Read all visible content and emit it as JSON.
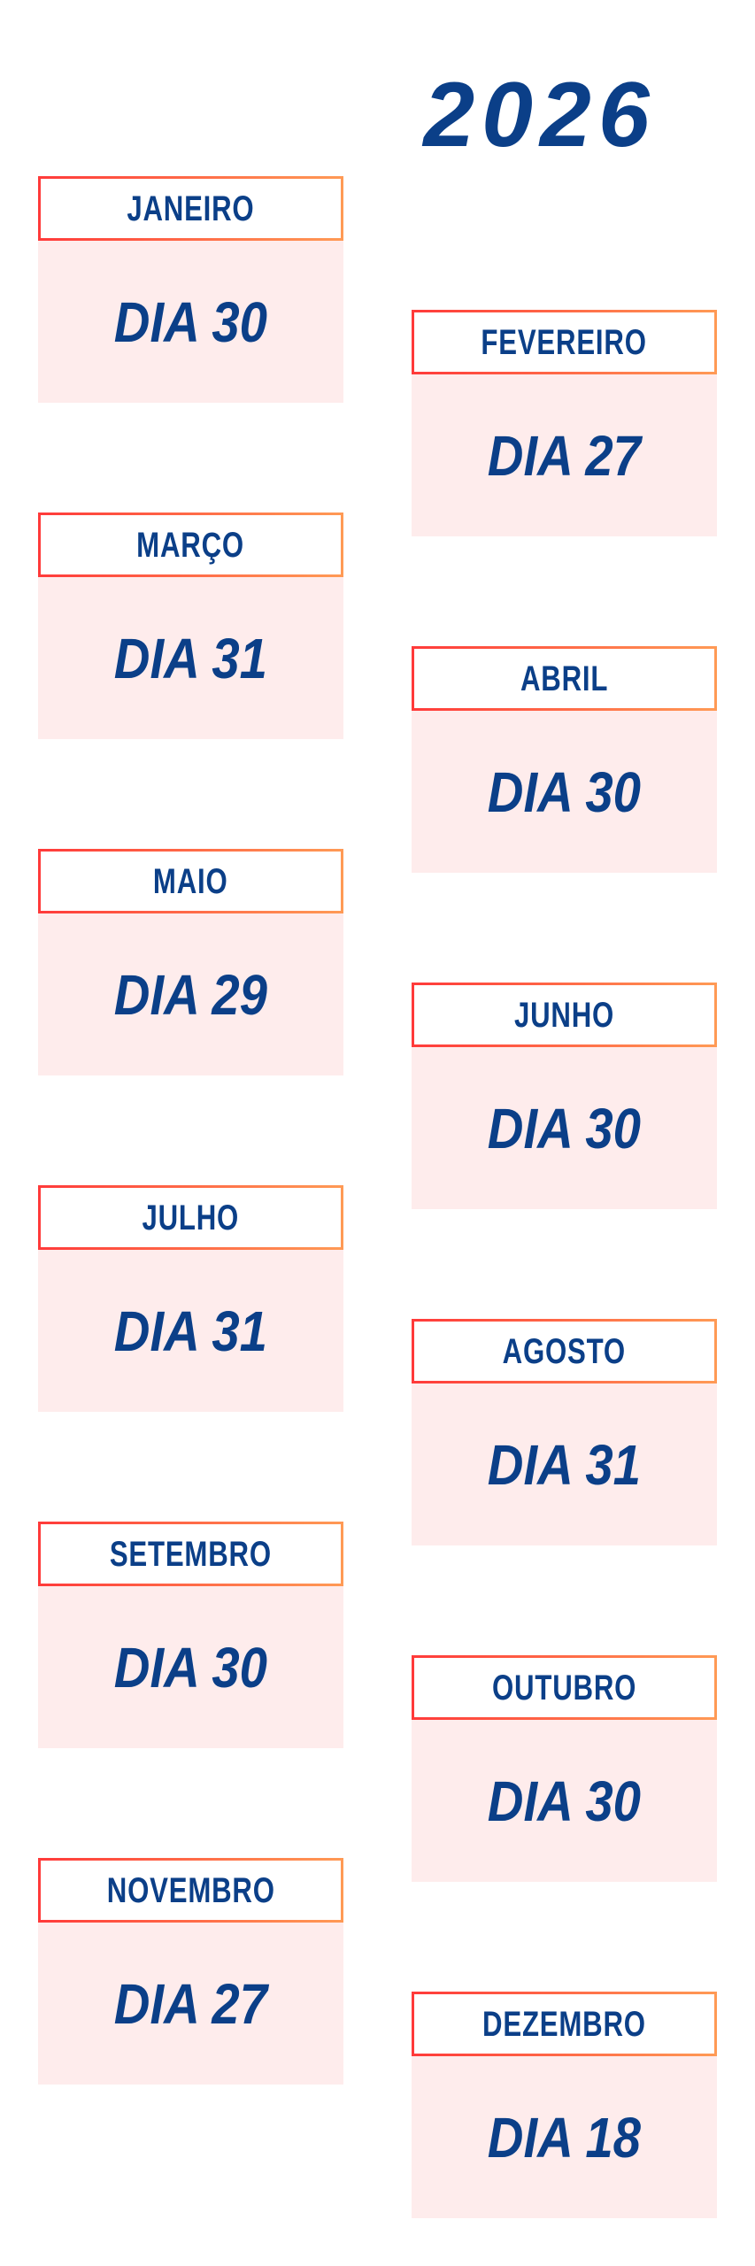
{
  "year": "2026",
  "colors": {
    "text": "#0b3f88",
    "border_start": "#ff3a3a",
    "border_end": "#ff9a55",
    "card_bg": "#feecec"
  },
  "months": [
    {
      "month": "JANEIRO",
      "day": "DIA 30"
    },
    {
      "month": "FEVEREIRO",
      "day": "DIA 27"
    },
    {
      "month": "MARÇO",
      "day": "DIA 31"
    },
    {
      "month": "ABRIL",
      "day": "DIA 30"
    },
    {
      "month": "MAIO",
      "day": "DIA 29"
    },
    {
      "month": "JUNHO",
      "day": "DIA 30"
    },
    {
      "month": "JULHO",
      "day": "DIA 31"
    },
    {
      "month": "AGOSTO",
      "day": "DIA 31"
    },
    {
      "month": "SETEMBRO",
      "day": "DIA 30"
    },
    {
      "month": "OUTUBRO",
      "day": "DIA 30"
    },
    {
      "month": "NOVEMBRO",
      "day": "DIA 27"
    },
    {
      "month": "DEZEMBRO",
      "day": "DIA 18"
    }
  ]
}
